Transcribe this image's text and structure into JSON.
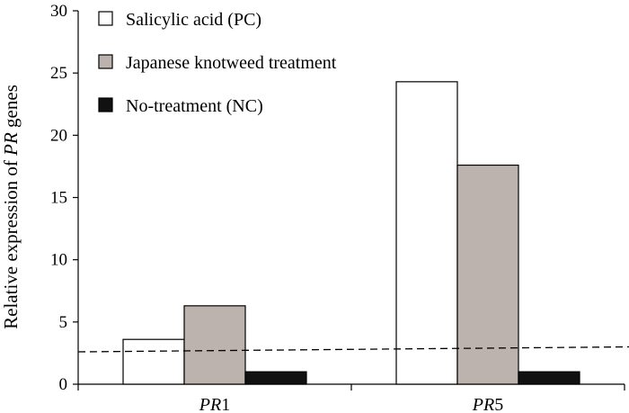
{
  "chart_data": {
    "type": "bar",
    "title": "",
    "xlabel": "",
    "ylabel": {
      "prefix": "Relative expression of ",
      "italic": "PR",
      "suffix": " genes"
    },
    "ylim": [
      0,
      30
    ],
    "yticks": [
      0,
      5,
      10,
      15,
      20,
      25,
      30
    ],
    "categories": [
      {
        "italic": "PR",
        "suffix": "1"
      },
      {
        "italic": "PR",
        "suffix": "5"
      }
    ],
    "series": [
      {
        "name": "Salicylic acid (PC)",
        "color": "#ffffff",
        "values": [
          3.6,
          24.3
        ]
      },
      {
        "name": "Japanese knotweed treatment",
        "color": "#bdb3ae",
        "values": [
          6.3,
          17.6
        ]
      },
      {
        "name": "No-treatment (NC)",
        "color": "#111111",
        "values": [
          1.0,
          1.0
        ]
      }
    ],
    "reference_line": {
      "style": "dashed",
      "y_start": 2.6,
      "y_end": 3.0
    },
    "legend_position": "top-left",
    "grid": false
  }
}
